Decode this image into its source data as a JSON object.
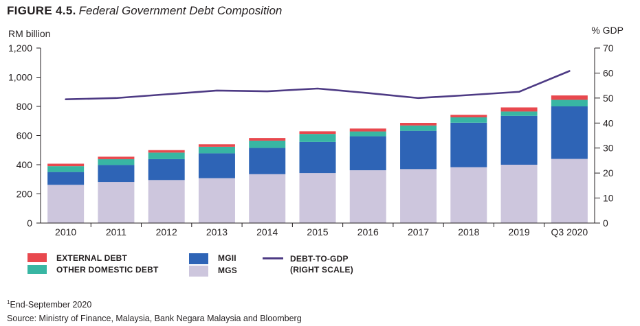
{
  "figure": {
    "number": "FIGURE 4.5.",
    "name": "Federal Government Debt Composition"
  },
  "chart_data": {
    "type": "bar",
    "stacked": true,
    "categories": [
      "2010",
      "2011",
      "2012",
      "2013",
      "2014",
      "2015",
      "2016",
      "2017",
      "2018",
      "2019",
      "Q3 2020"
    ],
    "ylabel": "RM billion",
    "ylim": [
      0,
      1200
    ],
    "yticks": [
      "0",
      "200",
      "400",
      "600",
      "800",
      "1,000",
      "1,200"
    ],
    "ylabel_right": "% GDP",
    "ylim_right": [
      0,
      70
    ],
    "yticks_right": [
      "0",
      "10",
      "20",
      "30",
      "40",
      "50",
      "60",
      "70"
    ],
    "series": [
      {
        "name": "MGS",
        "color": "#cdc6dd",
        "values": [
          262,
          282,
          295,
          308,
          335,
          343,
          362,
          370,
          383,
          400,
          440
        ]
      },
      {
        "name": "MGII",
        "color": "#2e64b6",
        "values": [
          88,
          116,
          143,
          170,
          180,
          213,
          233,
          262,
          305,
          335,
          360
        ]
      },
      {
        "name": "OTHER DOMESTIC DEBT",
        "color": "#38b6a3",
        "values": [
          40,
          40,
          45,
          45,
          50,
          55,
          33,
          37,
          37,
          30,
          45
        ]
      },
      {
        "name": "EXTERNAL DEBT",
        "color": "#e8484e",
        "values": [
          17,
          17,
          17,
          17,
          18,
          18,
          20,
          18,
          17,
          28,
          30
        ]
      }
    ],
    "line": {
      "name": "DEBT-TO-GDP (RIGHT SCALE)",
      "color": "#4d3a84",
      "axis": "right",
      "values": [
        49.5,
        50.0,
        51.5,
        53.0,
        52.7,
        53.8,
        52.0,
        50.0,
        51.2,
        52.5,
        60.8
      ]
    },
    "grid": false,
    "legend_position": "bottom-left"
  },
  "legend": {
    "external_debt": "EXTERNAL DEBT",
    "other_domestic_debt": "OTHER DOMESTIC DEBT",
    "mgii": "MGII",
    "mgs": "MGS",
    "debt_to_gdp_line1": "DEBT-TO-GDP",
    "debt_to_gdp_line2": "(RIGHT SCALE)"
  },
  "notes": {
    "footnote_mark": "1",
    "footnote": "End-September 2020",
    "source": "Source: Ministry of Finance, Malaysia, Bank Negara Malaysia and Bloomberg"
  }
}
